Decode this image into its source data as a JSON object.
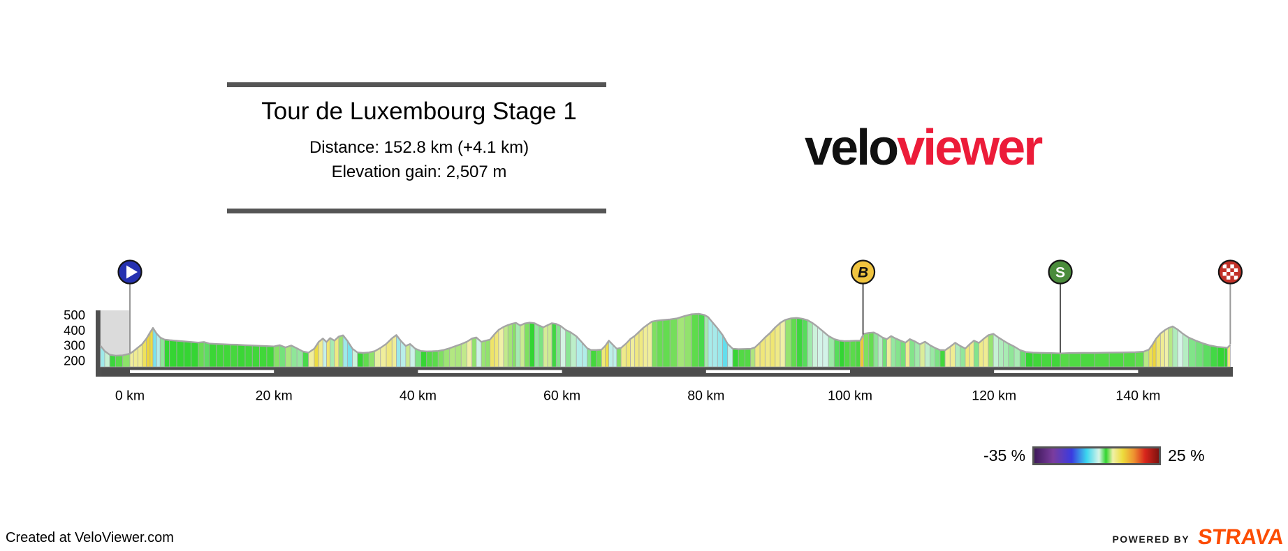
{
  "title_block": {
    "title": "Tour de Luxembourg Stage 1",
    "distance": "Distance: 152.8 km (+4.1 km)",
    "elevation_gain": "Elevation gain: 2,507 m"
  },
  "logo": {
    "black": "velo",
    "red": "viewer",
    "red_color": "#EC1C39"
  },
  "legend": {
    "min_label": "-35 %",
    "max_label": "25 %",
    "min": -35,
    "max": 25,
    "stops": [
      [
        0.0,
        "#3F1A5B"
      ],
      [
        0.15,
        "#7A3C9E"
      ],
      [
        0.3,
        "#3A3BE0"
      ],
      [
        0.42,
        "#3BD6EE"
      ],
      [
        0.52,
        "#D8F4E8"
      ],
      [
        0.575,
        "#2FD42F"
      ],
      [
        0.63,
        "#F0F0A8"
      ],
      [
        0.71,
        "#EDDC3C"
      ],
      [
        0.8,
        "#EE9130"
      ],
      [
        0.89,
        "#D8251C"
      ],
      [
        1.0,
        "#7E120F"
      ]
    ]
  },
  "footer": {
    "created": "Created at VeloViewer.com",
    "powered_by": "POWERED BY",
    "strava": "STRAVA",
    "strava_color": "#FC4C02"
  },
  "chart_data": {
    "type": "area",
    "title": "Tour de Luxembourg Stage 1",
    "distance_km": 152.8,
    "lead_in_km": 4.1,
    "elevation_gain_m": 2507,
    "x_tick_labels": [
      "0 km",
      "20 km",
      "40 km",
      "60 km",
      "80 km",
      "100 km",
      "120 km",
      "140 km"
    ],
    "x_tick_km": [
      0,
      20,
      40,
      60,
      80,
      100,
      120,
      140
    ],
    "y_ticks": [
      500,
      400,
      300,
      200
    ],
    "ylim_m": [
      158,
      531
    ],
    "xlim_km": [
      -4.5,
      153.5
    ],
    "gradient_percent_range": [
      -35,
      25
    ],
    "markers": [
      {
        "type": "start",
        "km": 0,
        "icon": "play",
        "color": "#2531B0",
        "stem_color": "#999999"
      },
      {
        "type": "bonus-sprint",
        "km": 101.8,
        "label": "B",
        "color": "#F0C43F",
        "label_color": "#111111",
        "stem_color": "#555555"
      },
      {
        "type": "sprint",
        "km": 129.2,
        "label": "S",
        "color": "#4A8C3B",
        "label_color": "#ffffff",
        "stem_color": "#555555"
      },
      {
        "type": "finish",
        "km": 152.8,
        "icon": "checkered",
        "color": "#C23128",
        "stem_color": "#999999"
      }
    ],
    "profile_km_elev": [
      [
        -4.1,
        298
      ],
      [
        -3.5,
        262
      ],
      [
        -2.8,
        238
      ],
      [
        -2,
        232
      ],
      [
        -1,
        234
      ],
      [
        0,
        245
      ],
      [
        0.5,
        262
      ],
      [
        1.1,
        285
      ],
      [
        1.7,
        308
      ],
      [
        2.3,
        345
      ],
      [
        2.8,
        385
      ],
      [
        3.2,
        415
      ],
      [
        3.7,
        378
      ],
      [
        4.2,
        352
      ],
      [
        4.8,
        338
      ],
      [
        5.5,
        334
      ],
      [
        6.5,
        330
      ],
      [
        7.5,
        326
      ],
      [
        8.5,
        322
      ],
      [
        9.5,
        318
      ],
      [
        10.3,
        322
      ],
      [
        11,
        312
      ],
      [
        12,
        309
      ],
      [
        13,
        307
      ],
      [
        14,
        305
      ],
      [
        15,
        304
      ],
      [
        16,
        301
      ],
      [
        17,
        299
      ],
      [
        18,
        297
      ],
      [
        19,
        295
      ],
      [
        20,
        293
      ],
      [
        20.8,
        301
      ],
      [
        21.6,
        286
      ],
      [
        22.4,
        299
      ],
      [
        23.2,
        280
      ],
      [
        24,
        260
      ],
      [
        24.8,
        252
      ],
      [
        25.6,
        278
      ],
      [
        26.2,
        322
      ],
      [
        26.8,
        345
      ],
      [
        27.3,
        322
      ],
      [
        27.8,
        348
      ],
      [
        28.4,
        331
      ],
      [
        29,
        358
      ],
      [
        29.6,
        366
      ],
      [
        30.2,
        330
      ],
      [
        30.9,
        278
      ],
      [
        31.6,
        253
      ],
      [
        32.4,
        250
      ],
      [
        33.2,
        253
      ],
      [
        34,
        262
      ],
      [
        34.8,
        283
      ],
      [
        35.6,
        310
      ],
      [
        36.4,
        347
      ],
      [
        37,
        368
      ],
      [
        37.6,
        331
      ],
      [
        38.3,
        296
      ],
      [
        38.9,
        309
      ],
      [
        39.6,
        279
      ],
      [
        40.4,
        263
      ],
      [
        41.2,
        260
      ],
      [
        42,
        261
      ],
      [
        42.8,
        263
      ],
      [
        43.6,
        270
      ],
      [
        44.4,
        281
      ],
      [
        45.2,
        295
      ],
      [
        46,
        308
      ],
      [
        46.8,
        324
      ],
      [
        47.5,
        345
      ],
      [
        48.1,
        352
      ],
      [
        48.8,
        323
      ],
      [
        49.4,
        331
      ],
      [
        50,
        338
      ],
      [
        50.6,
        372
      ],
      [
        51.2,
        402
      ],
      [
        51.9,
        422
      ],
      [
        52.5,
        434
      ],
      [
        53.1,
        443
      ],
      [
        53.6,
        448
      ],
      [
        54.2,
        431
      ],
      [
        54.8,
        444
      ],
      [
        55.5,
        450
      ],
      [
        56.2,
        446
      ],
      [
        56.8,
        431
      ],
      [
        57.4,
        419
      ],
      [
        58,
        433
      ],
      [
        58.6,
        446
      ],
      [
        59.2,
        441
      ],
      [
        59.8,
        428
      ],
      [
        60.5,
        402
      ],
      [
        61.2,
        386
      ],
      [
        62,
        360
      ],
      [
        62.8,
        318
      ],
      [
        63.5,
        281
      ],
      [
        64,
        270
      ],
      [
        64.8,
        269
      ],
      [
        65.5,
        272
      ],
      [
        66,
        296
      ],
      [
        66.5,
        331
      ],
      [
        67.1,
        302
      ],
      [
        67.6,
        278
      ],
      [
        68.2,
        283
      ],
      [
        68.9,
        312
      ],
      [
        69.5,
        342
      ],
      [
        70.1,
        362
      ],
      [
        70.7,
        389
      ],
      [
        71.3,
        416
      ],
      [
        71.9,
        437
      ],
      [
        72.5,
        457
      ],
      [
        73.2,
        463
      ],
      [
        74,
        467
      ],
      [
        75,
        471
      ],
      [
        76,
        478
      ],
      [
        77,
        493
      ],
      [
        78,
        505
      ],
      [
        79,
        508
      ],
      [
        79.8,
        500
      ],
      [
        80.3,
        486
      ],
      [
        80.9,
        452
      ],
      [
        81.6,
        412
      ],
      [
        82.3,
        368
      ],
      [
        83,
        310
      ],
      [
        83.7,
        278
      ],
      [
        84.5,
        275
      ],
      [
        85.4,
        276
      ],
      [
        86.2,
        277
      ],
      [
        86.8,
        287
      ],
      [
        87.5,
        318
      ],
      [
        88.2,
        352
      ],
      [
        88.9,
        382
      ],
      [
        89.6,
        418
      ],
      [
        90.3,
        448
      ],
      [
        91,
        468
      ],
      [
        91.8,
        478
      ],
      [
        92.6,
        481
      ],
      [
        93.4,
        475
      ],
      [
        94.1,
        466
      ],
      [
        94.8,
        447
      ],
      [
        95.5,
        422
      ],
      [
        96.2,
        394
      ],
      [
        97,
        362
      ],
      [
        97.8,
        341
      ],
      [
        98.5,
        332
      ],
      [
        99.2,
        328
      ],
      [
        100,
        329
      ],
      [
        100.8,
        331
      ],
      [
        101.4,
        331
      ],
      [
        101.9,
        376
      ],
      [
        102.6,
        382
      ],
      [
        103.3,
        385
      ],
      [
        103.9,
        371
      ],
      [
        104.5,
        352
      ],
      [
        105.1,
        341
      ],
      [
        105.7,
        361
      ],
      [
        106.3,
        346
      ],
      [
        107,
        331
      ],
      [
        107.7,
        318
      ],
      [
        108.3,
        341
      ],
      [
        109,
        326
      ],
      [
        109.7,
        307
      ],
      [
        110.4,
        324
      ],
      [
        111.1,
        301
      ],
      [
        111.8,
        283
      ],
      [
        112.5,
        269
      ],
      [
        113.2,
        268
      ],
      [
        113.9,
        291
      ],
      [
        114.6,
        317
      ],
      [
        115.3,
        296
      ],
      [
        116,
        279
      ],
      [
        116.6,
        307
      ],
      [
        117.2,
        331
      ],
      [
        117.9,
        316
      ],
      [
        118.5,
        341
      ],
      [
        119.2,
        367
      ],
      [
        119.9,
        376
      ],
      [
        120.6,
        352
      ],
      [
        121.3,
        331
      ],
      [
        122,
        311
      ],
      [
        122.8,
        292
      ],
      [
        123.6,
        269
      ],
      [
        124.4,
        256
      ],
      [
        125.4,
        252
      ],
      [
        126.6,
        250
      ],
      [
        128,
        249
      ],
      [
        129.2,
        247
      ],
      [
        130.4,
        249
      ],
      [
        132,
        250
      ],
      [
        134,
        250
      ],
      [
        136,
        252
      ],
      [
        138,
        253
      ],
      [
        139.6,
        255
      ],
      [
        140.8,
        259
      ],
      [
        141.5,
        272
      ],
      [
        142,
        305
      ],
      [
        142.5,
        345
      ],
      [
        143.1,
        378
      ],
      [
        143.7,
        400
      ],
      [
        144.2,
        414
      ],
      [
        144.8,
        425
      ],
      [
        145.5,
        404
      ],
      [
        146.2,
        377
      ],
      [
        147,
        352
      ],
      [
        148,
        331
      ],
      [
        149,
        313
      ],
      [
        150,
        299
      ],
      [
        151,
        290
      ],
      [
        152,
        286
      ],
      [
        152.4,
        284
      ],
      [
        152.8,
        303
      ]
    ]
  }
}
